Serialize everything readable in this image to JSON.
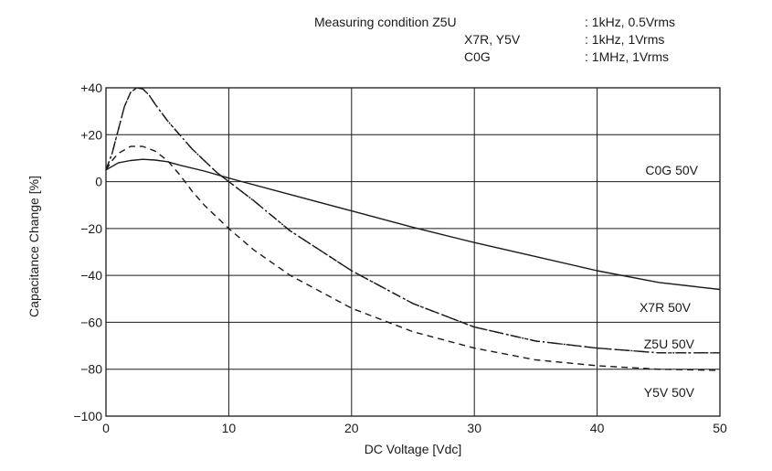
{
  "measuring_condition": {
    "heading": "Measuring condition",
    "rows": [
      {
        "types": "Z5U",
        "value": ": 1kHz, 0.5Vrms"
      },
      {
        "types": "X7R, Y5V",
        "value": ": 1kHz, 1Vrms"
      },
      {
        "types": "C0G",
        "value": ": 1MHz, 1Vrms"
      }
    ]
  },
  "chart_data": {
    "type": "line",
    "title": "",
    "xlabel": "DC Voltage [Vdc]",
    "ylabel": "Capacitance Change [%]",
    "xlim": [
      0,
      50
    ],
    "ylim": [
      -100,
      40
    ],
    "x_ticks": [
      0,
      10,
      20,
      30,
      40,
      50
    ],
    "x_tick_labels": [
      "0",
      "10",
      "20",
      "30",
      "40",
      "50"
    ],
    "y_ticks": [
      40,
      20,
      0,
      -20,
      -40,
      -60,
      -80,
      -100
    ],
    "y_tick_labels": [
      "+40",
      "+20",
      "0",
      "−20",
      "−40",
      "−60",
      "−80",
      "−100"
    ],
    "grid": true,
    "series": [
      {
        "name": "C0G 50V",
        "style": "solid",
        "x": [
          0,
          1,
          2,
          3,
          4,
          5,
          6,
          8,
          10,
          15,
          20,
          25,
          30,
          35,
          40,
          45,
          50
        ],
        "y": [
          5,
          8,
          9,
          9.5,
          9.2,
          8.5,
          7,
          4.5,
          1.5,
          -5.5,
          -12.5,
          -19.5,
          -26,
          -32,
          -38,
          -43,
          -46
        ]
      },
      {
        "name": "X7R 50V",
        "style": "dash-dot",
        "x": [
          0,
          0.5,
          1,
          1.5,
          2,
          2.5,
          3,
          3.5,
          4,
          5,
          6,
          7,
          8,
          9,
          10,
          12,
          15,
          20,
          25,
          30,
          35,
          40,
          45,
          50
        ],
        "y": [
          5,
          12,
          22,
          32,
          38,
          40,
          39.5,
          37,
          33,
          26,
          20,
          14,
          9,
          4,
          0,
          -8,
          -21,
          -38,
          -52,
          -62,
          -68,
          -71,
          -73,
          -73
        ]
      },
      {
        "name": "Z5U 50V",
        "style": "dash-dot-dot",
        "x": [
          0,
          0.5,
          1,
          1.5,
          2,
          2.5,
          3,
          3.5,
          4,
          5,
          6,
          7,
          8,
          9,
          10,
          12,
          15,
          20,
          25,
          30,
          35,
          40,
          45,
          50
        ],
        "y": [
          5,
          12,
          22,
          32,
          38,
          40,
          39.5,
          37,
          33,
          26,
          20,
          14,
          9,
          4,
          0,
          -8,
          -21,
          -38,
          -52,
          -62,
          -68,
          -71,
          -73,
          -73
        ]
      },
      {
        "name": "Y5V 50V",
        "style": "dashed",
        "x": [
          0,
          0.5,
          1,
          2,
          3,
          4,
          5,
          6,
          7,
          8,
          10,
          12,
          15,
          20,
          25,
          30,
          35,
          40,
          45,
          50
        ],
        "y": [
          5,
          9,
          12,
          15,
          15,
          13,
          9,
          3,
          -4,
          -10,
          -20,
          -29,
          -40,
          -54,
          -64,
          -71,
          -76,
          -78.5,
          -80,
          -80.5
        ]
      }
    ],
    "line_labels": [
      "C0G 50V",
      "X7R 50V",
      "Z5U 50V",
      "Y5V 50V"
    ]
  }
}
